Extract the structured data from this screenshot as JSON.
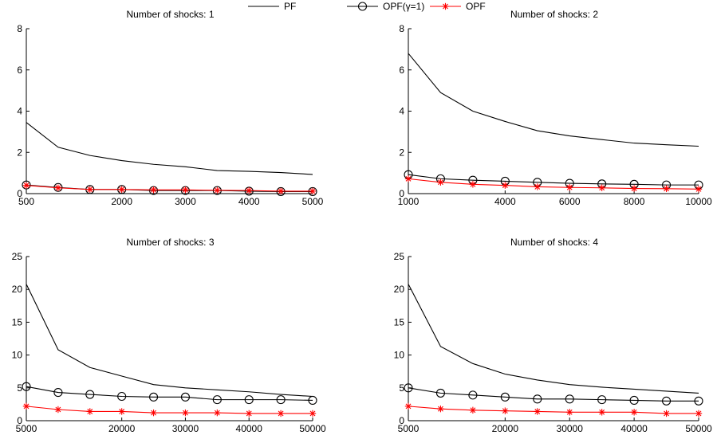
{
  "legend": {
    "items": [
      {
        "label": "PF",
        "color": "#000000",
        "marker": "none"
      },
      {
        "label": "OPF(γ=1)",
        "color": "#000000",
        "marker": "circle"
      },
      {
        "label": "OPF",
        "color": "#ff0000",
        "marker": "star"
      }
    ],
    "placement": "top-center"
  },
  "chart_data": [
    {
      "type": "line",
      "title": "Number of shocks: 1",
      "x": [
        500,
        1000,
        1500,
        2000,
        2500,
        3000,
        3500,
        4000,
        4500,
        5000
      ],
      "xlim": [
        500,
        5000
      ],
      "ylim": [
        0,
        8
      ],
      "xticks": [
        "500",
        "2000",
        "3000",
        "4000",
        "5000"
      ],
      "xtick_values": [
        500,
        2000,
        3000,
        4000,
        5000
      ],
      "yticks": [
        "0",
        "2",
        "4",
        "6",
        "8"
      ],
      "ytick_values": [
        0,
        2,
        4,
        6,
        8
      ],
      "grid": false,
      "series": [
        {
          "name": "PF",
          "color": "#000000",
          "marker": "none",
          "values": [
            3.45,
            2.25,
            1.85,
            1.6,
            1.42,
            1.3,
            1.12,
            1.08,
            1.02,
            0.93
          ]
        },
        {
          "name": "OPF(γ=1)",
          "color": "#000000",
          "marker": "circle",
          "values": [
            0.42,
            0.3,
            0.2,
            0.2,
            0.15,
            0.15,
            0.15,
            0.12,
            0.1,
            0.1
          ]
        },
        {
          "name": "OPF",
          "color": "#ff0000",
          "marker": "star",
          "values": [
            0.4,
            0.28,
            0.2,
            0.2,
            0.18,
            0.18,
            0.16,
            0.15,
            0.12,
            0.12
          ]
        }
      ]
    },
    {
      "type": "line",
      "title": "Number of shocks: 2",
      "x": [
        1000,
        2000,
        3000,
        4000,
        5000,
        6000,
        7000,
        8000,
        9000,
        10000
      ],
      "xlim": [
        1000,
        10000
      ],
      "ylim": [
        0,
        8
      ],
      "xticks": [
        "1000",
        "4000",
        "6000",
        "8000",
        "10000"
      ],
      "xtick_values": [
        1000,
        4000,
        6000,
        8000,
        10000
      ],
      "yticks": [
        "0",
        "2",
        "4",
        "6",
        "8"
      ],
      "ytick_values": [
        0,
        2,
        4,
        6,
        8
      ],
      "grid": false,
      "series": [
        {
          "name": "PF",
          "color": "#000000",
          "marker": "none",
          "values": [
            6.8,
            4.9,
            4.0,
            3.5,
            3.05,
            2.8,
            2.62,
            2.45,
            2.37,
            2.3
          ]
        },
        {
          "name": "OPF(γ=1)",
          "color": "#000000",
          "marker": "circle",
          "values": [
            0.92,
            0.72,
            0.65,
            0.6,
            0.55,
            0.5,
            0.47,
            0.45,
            0.42,
            0.42
          ]
        },
        {
          "name": "OPF",
          "color": "#ff0000",
          "marker": "star",
          "values": [
            0.72,
            0.55,
            0.45,
            0.4,
            0.33,
            0.3,
            0.28,
            0.25,
            0.24,
            0.22
          ]
        }
      ]
    },
    {
      "type": "line",
      "title": "Number of shocks: 3",
      "x": [
        5000,
        10000,
        15000,
        20000,
        25000,
        30000,
        35000,
        40000,
        45000,
        50000
      ],
      "xlim": [
        5000,
        50000
      ],
      "ylim": [
        0,
        25
      ],
      "xticks": [
        "5000",
        "20000",
        "30000",
        "40000",
        "50000"
      ],
      "xtick_values": [
        5000,
        20000,
        30000,
        40000,
        50000
      ],
      "yticks": [
        "0",
        "5",
        "10",
        "15",
        "20",
        "25"
      ],
      "ytick_values": [
        0,
        5,
        10,
        15,
        20,
        25
      ],
      "grid": false,
      "series": [
        {
          "name": "PF",
          "color": "#000000",
          "marker": "none",
          "values": [
            20.8,
            10.8,
            8.1,
            6.8,
            5.5,
            5.0,
            4.7,
            4.4,
            4.0,
            3.7
          ]
        },
        {
          "name": "OPF(γ=1)",
          "color": "#000000",
          "marker": "circle",
          "values": [
            5.2,
            4.3,
            4.0,
            3.7,
            3.6,
            3.6,
            3.2,
            3.2,
            3.2,
            3.1
          ]
        },
        {
          "name": "OPF",
          "color": "#ff0000",
          "marker": "star",
          "values": [
            2.2,
            1.7,
            1.4,
            1.4,
            1.2,
            1.2,
            1.2,
            1.1,
            1.1,
            1.1
          ]
        }
      ]
    },
    {
      "type": "line",
      "title": "Number of shocks: 4",
      "x": [
        5000,
        10000,
        15000,
        20000,
        25000,
        30000,
        35000,
        40000,
        45000,
        50000
      ],
      "xlim": [
        5000,
        50000
      ],
      "ylim": [
        0,
        25
      ],
      "xticks": [
        "5000",
        "20000",
        "30000",
        "40000",
        "50000"
      ],
      "xtick_values": [
        5000,
        20000,
        30000,
        40000,
        50000
      ],
      "yticks": [
        "0",
        "5",
        "10",
        "15",
        "20",
        "25"
      ],
      "ytick_values": [
        0,
        5,
        10,
        15,
        20,
        25
      ],
      "grid": false,
      "series": [
        {
          "name": "PF",
          "color": "#000000",
          "marker": "none",
          "values": [
            20.8,
            11.3,
            8.7,
            7.1,
            6.2,
            5.5,
            5.1,
            4.8,
            4.5,
            4.2
          ]
        },
        {
          "name": "OPF(γ=1)",
          "color": "#000000",
          "marker": "circle",
          "values": [
            5.0,
            4.2,
            3.9,
            3.6,
            3.3,
            3.3,
            3.2,
            3.1,
            3.0,
            3.0
          ]
        },
        {
          "name": "OPF",
          "color": "#ff0000",
          "marker": "star",
          "values": [
            2.2,
            1.8,
            1.6,
            1.5,
            1.4,
            1.3,
            1.3,
            1.3,
            1.1,
            1.1
          ]
        }
      ]
    }
  ]
}
